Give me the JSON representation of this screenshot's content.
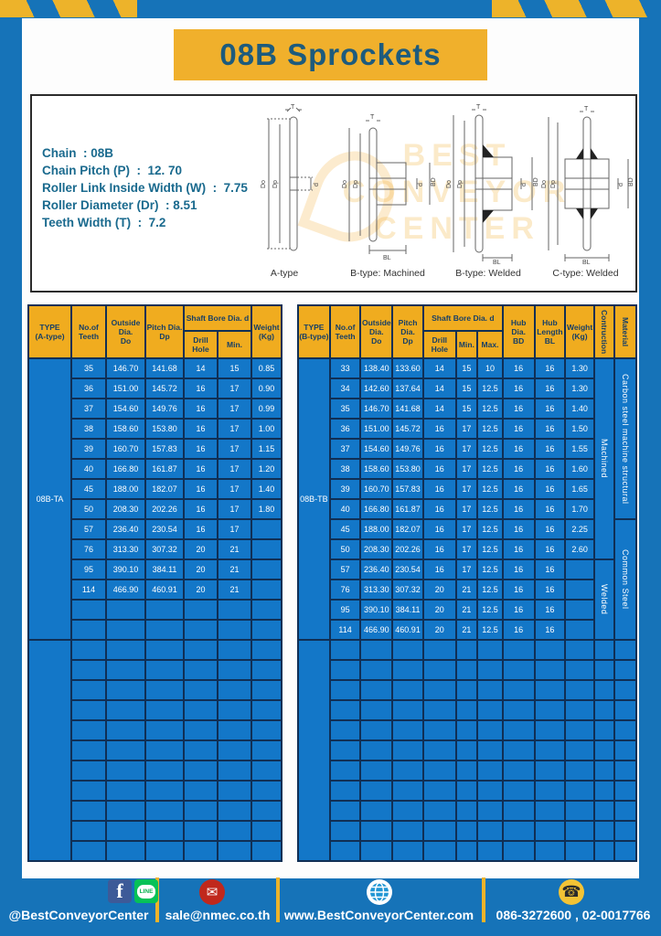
{
  "page": {
    "title": "08B Sprockets"
  },
  "colors": {
    "page_blue": "#1673b8",
    "banner_yellow": "#f0b02c",
    "table_header_yellow": "#f0ac1f",
    "table_body_blue": "#1377c8",
    "grid_navy": "#102f55",
    "title_text_blue": "#1d5b7d",
    "footer_text": "#ffffff"
  },
  "specs": {
    "lines": [
      "Chain  : 08B",
      "Chain Pitch (P)  :  12. 70",
      "Roller Link Inside Width (W)  :  7.75",
      "Roller Diameter (Dr)  : 8.51",
      "Teeth Width (T)  :  7.2"
    ]
  },
  "diagrams": {
    "captions": [
      "A-type",
      "B-type: Machined",
      "B-type: Welded",
      "C-type: Welded"
    ],
    "dims": {
      "t": "T",
      "do": "Do",
      "dp": "Dp",
      "d": "d",
      "bd": "BD",
      "bl": "BL"
    }
  },
  "watermark": {
    "lines": [
      "BEST",
      "CONVEYOR",
      "CENTER"
    ]
  },
  "table_a": {
    "header": {
      "type1": "TYPE",
      "type2": "(A-type)",
      "teeth1": "No.of",
      "teeth2": "Teeth",
      "od1": "Outside",
      "od2": "Dia.",
      "od3": "Do",
      "pd1": "Pitch Dia.",
      "pd2": "Dp",
      "bore_group": "Shaft Bore Dia. d",
      "drill": "Drill Hole",
      "min": "Min.",
      "weight1": "Weight",
      "weight2": "(Kg)"
    },
    "groups": [
      {
        "type": "08B-TA",
        "rows": [
          [
            "35",
            "146.70",
            "141.68",
            "14",
            "15",
            "0.85"
          ],
          [
            "36",
            "151.00",
            "145.72",
            "16",
            "17",
            "0.90"
          ],
          [
            "37",
            "154.60",
            "149.76",
            "16",
            "17",
            "0.99"
          ],
          [
            "38",
            "158.60",
            "153.80",
            "16",
            "17",
            "1.00"
          ],
          [
            "39",
            "160.70",
            "157.83",
            "16",
            "17",
            "1.15"
          ],
          [
            "40",
            "166.80",
            "161.87",
            "16",
            "17",
            "1.20"
          ],
          [
            "45",
            "188.00",
            "182.07",
            "16",
            "17",
            "1.40"
          ],
          [
            "50",
            "208.30",
            "202.26",
            "16",
            "17",
            "1.80"
          ],
          [
            "57",
            "236.40",
            "230.54",
            "16",
            "17",
            ""
          ],
          [
            "76",
            "313.30",
            "307.32",
            "20",
            "21",
            ""
          ],
          [
            "95",
            "390.10",
            "384.11",
            "20",
            "21",
            ""
          ],
          [
            "114",
            "466.90",
            "460.91",
            "20",
            "21",
            ""
          ],
          [
            "",
            "",
            "",
            "",
            "",
            ""
          ],
          [
            "",
            "",
            "",
            "",
            "",
            ""
          ]
        ]
      },
      {
        "type": "",
        "rows": [
          [
            "",
            "",
            "",
            "",
            "",
            ""
          ],
          [
            "",
            "",
            "",
            "",
            "",
            ""
          ],
          [
            "",
            "",
            "",
            "",
            "",
            ""
          ],
          [
            "",
            "",
            "",
            "",
            "",
            ""
          ],
          [
            "",
            "",
            "",
            "",
            "",
            ""
          ],
          [
            "",
            "",
            "",
            "",
            "",
            ""
          ],
          [
            "",
            "",
            "",
            "",
            "",
            ""
          ],
          [
            "",
            "",
            "",
            "",
            "",
            ""
          ],
          [
            "",
            "",
            "",
            "",
            "",
            ""
          ],
          [
            "",
            "",
            "",
            "",
            "",
            ""
          ],
          [
            "",
            "",
            "",
            "",
            "",
            ""
          ]
        ]
      }
    ]
  },
  "table_b": {
    "header": {
      "type1": "TYPE",
      "type2": "(B-type)",
      "teeth1": "No.of",
      "teeth2": "Teeth",
      "od1": "Outside",
      "od2": "Dia.",
      "od3": "Do",
      "pd1": "Pitch Dia.",
      "pd2": "Dp",
      "bore_group": "Shaft Bore Dia. d",
      "drill": "Drill Hole",
      "min": "Min.",
      "max": "Max.",
      "bd1": "Hub Dia.",
      "bd2": "BD",
      "bl1": "Hub",
      "bl2": "Length",
      "bl3": "BL",
      "weight1": "Weight",
      "weight2": "(Kg)",
      "construction": "Contruction",
      "material": "Material"
    },
    "groups": [
      {
        "type": "08B-TB",
        "rows": [
          [
            "33",
            "138.40",
            "133.60",
            "14",
            "15",
            "10",
            "16",
            "16",
            "1.30"
          ],
          [
            "34",
            "142.60",
            "137.64",
            "14",
            "15",
            "12.5",
            "16",
            "16",
            "1.30"
          ],
          [
            "35",
            "146.70",
            "141.68",
            "14",
            "15",
            "12.5",
            "16",
            "16",
            "1.40"
          ],
          [
            "36",
            "151.00",
            "145.72",
            "16",
            "17",
            "12.5",
            "16",
            "16",
            "1.50"
          ],
          [
            "37",
            "154.60",
            "149.76",
            "16",
            "17",
            "12.5",
            "16",
            "16",
            "1.55"
          ],
          [
            "38",
            "158.60",
            "153.80",
            "16",
            "17",
            "12.5",
            "16",
            "16",
            "1.60"
          ],
          [
            "39",
            "160.70",
            "157.83",
            "16",
            "17",
            "12.5",
            "16",
            "16",
            "1.65"
          ],
          [
            "40",
            "166.80",
            "161.87",
            "16",
            "17",
            "12.5",
            "16",
            "16",
            "1.70"
          ],
          [
            "45",
            "188.00",
            "182.07",
            "16",
            "17",
            "12.5",
            "16",
            "16",
            "2.25"
          ],
          [
            "50",
            "208.30",
            "202.26",
            "16",
            "17",
            "12.5",
            "16",
            "16",
            "2.60"
          ],
          [
            "57",
            "236.40",
            "230.54",
            "16",
            "17",
            "12.5",
            "16",
            "16",
            ""
          ],
          [
            "76",
            "313.30",
            "307.32",
            "20",
            "21",
            "12.5",
            "16",
            "16",
            ""
          ],
          [
            "95",
            "390.10",
            "384.11",
            "20",
            "21",
            "12.5",
            "16",
            "16",
            ""
          ],
          [
            "114",
            "466.90",
            "460.91",
            "20",
            "21",
            "12.5",
            "16",
            "16",
            ""
          ]
        ]
      },
      {
        "type": "",
        "rows": [
          [
            "",
            "",
            "",
            "",
            "",
            "",
            "",
            "",
            "",
            "",
            ""
          ],
          [
            "",
            "",
            "",
            "",
            "",
            "",
            "",
            "",
            "",
            "",
            ""
          ],
          [
            "",
            "",
            "",
            "",
            "",
            "",
            "",
            "",
            "",
            "",
            ""
          ],
          [
            "",
            "",
            "",
            "",
            "",
            "",
            "",
            "",
            "",
            "",
            ""
          ],
          [
            "",
            "",
            "",
            "",
            "",
            "",
            "",
            "",
            "",
            "",
            ""
          ],
          [
            "",
            "",
            "",
            "",
            "",
            "",
            "",
            "",
            "",
            "",
            ""
          ],
          [
            "",
            "",
            "",
            "",
            "",
            "",
            "",
            "",
            "",
            "",
            ""
          ],
          [
            "",
            "",
            "",
            "",
            "",
            "",
            "",
            "",
            "",
            "",
            ""
          ],
          [
            "",
            "",
            "",
            "",
            "",
            "",
            "",
            "",
            "",
            "",
            ""
          ],
          [
            "",
            "",
            "",
            "",
            "",
            "",
            "",
            "",
            "",
            "",
            ""
          ],
          [
            "",
            "",
            "",
            "",
            "",
            "",
            "",
            "",
            "",
            "",
            ""
          ]
        ]
      }
    ],
    "construction_spans": [
      {
        "label": "Machined",
        "row": 0,
        "span": 10
      },
      {
        "label": "Welded",
        "row": 10,
        "span": 4
      }
    ],
    "material_spans": [
      {
        "label": "Carbon steel  machine structural",
        "row": 0,
        "span": 8
      },
      {
        "label": "Common  Steel",
        "row": 8,
        "span": 6
      }
    ]
  },
  "footer": {
    "social_handle": "@BestConveyorCenter",
    "line_label": "LINE",
    "email": "sale@nmec.co.th",
    "website": "www.BestConveyorCenter.com",
    "phone": "086-3272600 , 02-0017766"
  }
}
